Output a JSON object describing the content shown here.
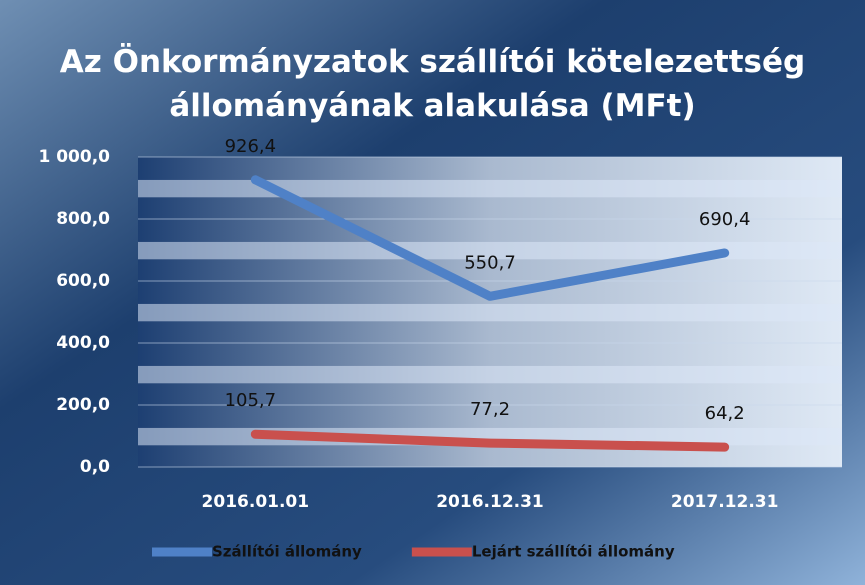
{
  "chart_data": {
    "type": "line",
    "title": "Az Önkormányzatok szállítói kötelezettség állományának alakulása (MFt)",
    "categories": [
      "2016.01.01",
      "2016.12.31",
      "2017.12.31"
    ],
    "series": [
      {
        "name": "Szállítói állomány",
        "color": "#4f81c7",
        "values": [
          926.4,
          550.7,
          690.4
        ],
        "value_labels": [
          "926,4",
          "550,7",
          "690,4"
        ]
      },
      {
        "name": "Lejárt szállítói állomány",
        "color": "#c9504d",
        "values": [
          105.7,
          77.2,
          64.2
        ],
        "value_labels": [
          "105,7",
          "77,2",
          "64,2"
        ]
      }
    ],
    "ylim": [
      0,
      1000
    ],
    "yticks": [
      {
        "value": 0,
        "label": "0,0"
      },
      {
        "value": 200,
        "label": "200,0"
      },
      {
        "value": 400,
        "label": "400,0"
      },
      {
        "value": 600,
        "label": "600,0"
      },
      {
        "value": 800,
        "label": "800,0"
      },
      {
        "value": 1000,
        "label": "1 000,0"
      }
    ],
    "grid": true,
    "legend": "bottom"
  }
}
